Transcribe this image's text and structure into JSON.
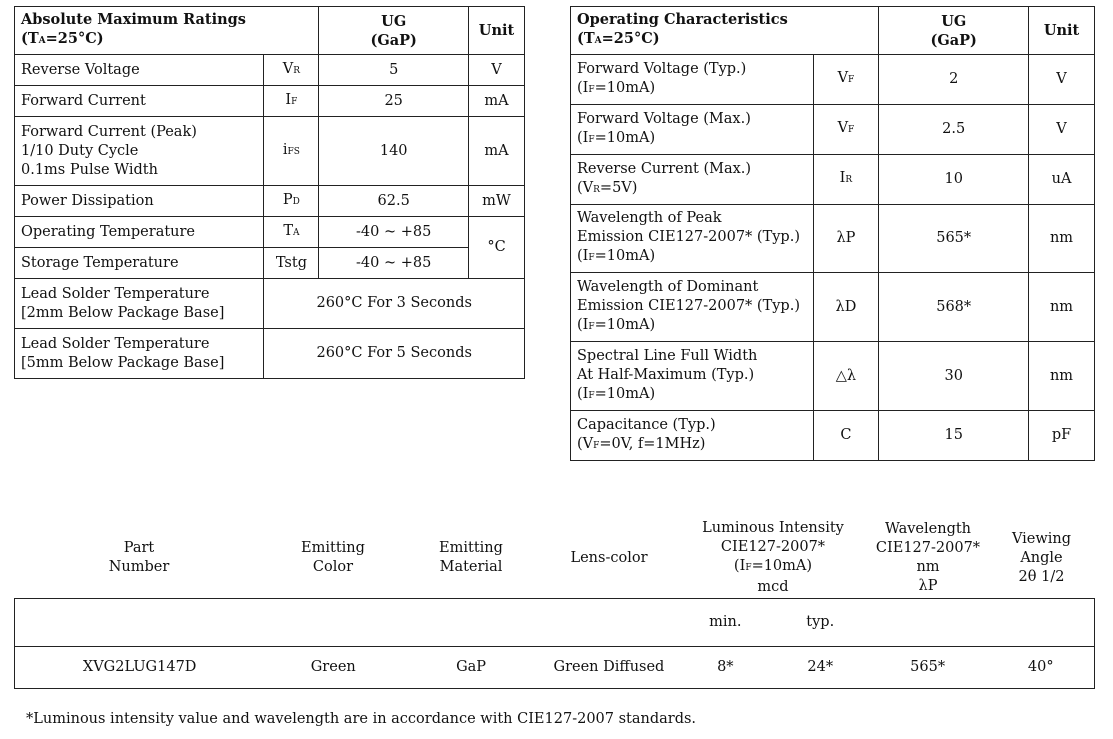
{
  "amr": {
    "title": "Absolute Maximum Ratings",
    "condition_main": "(T",
    "condition_sub": "A",
    "condition_tail": "=25°C)",
    "col_product_line1": "UG",
    "col_product_line2": "(GaP)",
    "col_unit": "Unit",
    "rows": [
      {
        "param": "Reverse Voltage",
        "sym": "V",
        "sym_sub": "R",
        "value": "5",
        "unit": "V"
      },
      {
        "param": "Forward Current",
        "sym": "I",
        "sym_sub": "F",
        "value": "25",
        "unit": "mA"
      },
      {
        "param_l1": "Forward Current (Peak)",
        "param_l2": "1/10 Duty Cycle",
        "param_l3": "0.1ms Pulse Width",
        "sym": "i",
        "sym_sub": "FS",
        "value": "140",
        "unit": "mA"
      },
      {
        "param": "Power Dissipation",
        "sym": "P",
        "sym_sub": "D",
        "value": "62.5",
        "unit": "mW"
      },
      {
        "param": "Operating Temperature",
        "sym": "T",
        "sym_sub": "A",
        "value": "-40 ~ +85",
        "unit": "°C"
      },
      {
        "param": "Storage Temperature",
        "sym": "Tstg",
        "value": "-40 ~ +85"
      },
      {
        "param_l1": "Lead Solder Temperature",
        "param_l2": "[2mm Below Package Base]",
        "value": "260°C For 3 Seconds"
      },
      {
        "param_l1": "Lead Solder Temperature",
        "param_l2": "[5mm Below Package Base]",
        "value": "260°C For 5 Seconds"
      }
    ]
  },
  "oc": {
    "title": "Operating Characteristics",
    "condition_main": "(T",
    "condition_sub": "A",
    "condition_tail": "=25°C)",
    "col_product_line1": "UG",
    "col_product_line2": "(GaP)",
    "col_unit": "Unit",
    "rows": [
      {
        "param_l1": "Forward Voltage (Typ.)",
        "cond_a": "(I",
        "cond_sub": "F",
        "cond_b": "=10mA)",
        "sym": "V",
        "sym_sub": "F",
        "value": "2",
        "unit": "V"
      },
      {
        "param_l1": "Forward Voltage (Max.)",
        "cond_a": "(I",
        "cond_sub": "F",
        "cond_b": "=10mA)",
        "sym": "V",
        "sym_sub": "F",
        "value": "2.5",
        "unit": "V"
      },
      {
        "param_l1": "Reverse Current (Max.)",
        "cond_a": "(V",
        "cond_sub": "R",
        "cond_b": "=5V)",
        "sym": "I",
        "sym_sub": "R",
        "value": "10",
        "unit": "uA"
      },
      {
        "param_l1": "Wavelength of Peak",
        "param_l2": "Emission CIE127-2007* (Typ.)",
        "cond_a": "(I",
        "cond_sub": "F",
        "cond_b": "=10mA)",
        "sym": "λP",
        "value": "565*",
        "unit": "nm"
      },
      {
        "param_l1": "Wavelength of Dominant",
        "param_l2": "Emission CIE127-2007* (Typ.)",
        "cond_a": "(I",
        "cond_sub": "F",
        "cond_b": "=10mA)",
        "sym": "λD",
        "value": "568*",
        "unit": "nm"
      },
      {
        "param_l1": "Spectral Line Full Width",
        "param_l2": "At Half-Maximum (Typ.)",
        "cond_a": "(I",
        "cond_sub": "F",
        "cond_b": "=10mA)",
        "sym": "△λ",
        "value": "30",
        "unit": "nm"
      },
      {
        "param_l1": "Capacitance (Typ.)",
        "cond_a": "(V",
        "cond_sub": "F",
        "cond_b": "=0V, f=1MHz)",
        "sym": "C",
        "value": "15",
        "unit": "pF"
      }
    ]
  },
  "selection": {
    "headers": {
      "part_l1": "Part",
      "part_l2": "Number",
      "color_l1": "Emitting",
      "color_l2": "Color",
      "material_l1": "Emitting",
      "material_l2": "Material",
      "lens": "Lens-color",
      "lum_l1": "Luminous Intensity",
      "lum_l2": "CIE127-2007*",
      "lum_l3a": "(I",
      "lum_l3sub": "F",
      "lum_l3b": "=10mA)",
      "lum_l4": "mcd",
      "wl_l1": "Wavelength",
      "wl_l2": "CIE127-2007*",
      "wl_l3": "nm",
      "wl_l4": "λP",
      "view_l1": "Viewing",
      "view_l2": "Angle",
      "view_l3": "2θ 1/2"
    },
    "sub_min": "min.",
    "sub_typ": "typ.",
    "row": {
      "part": "XVG2LUG147D",
      "color": "Green",
      "material": "GaP",
      "lens": "Green Diffused",
      "lum_min": "8*",
      "lum_typ": "24*",
      "wavelength": "565*",
      "angle": "40°"
    }
  },
  "footnote": "*Luminous intensity value and wavelength are in accordance with CIE127-2007 standards."
}
